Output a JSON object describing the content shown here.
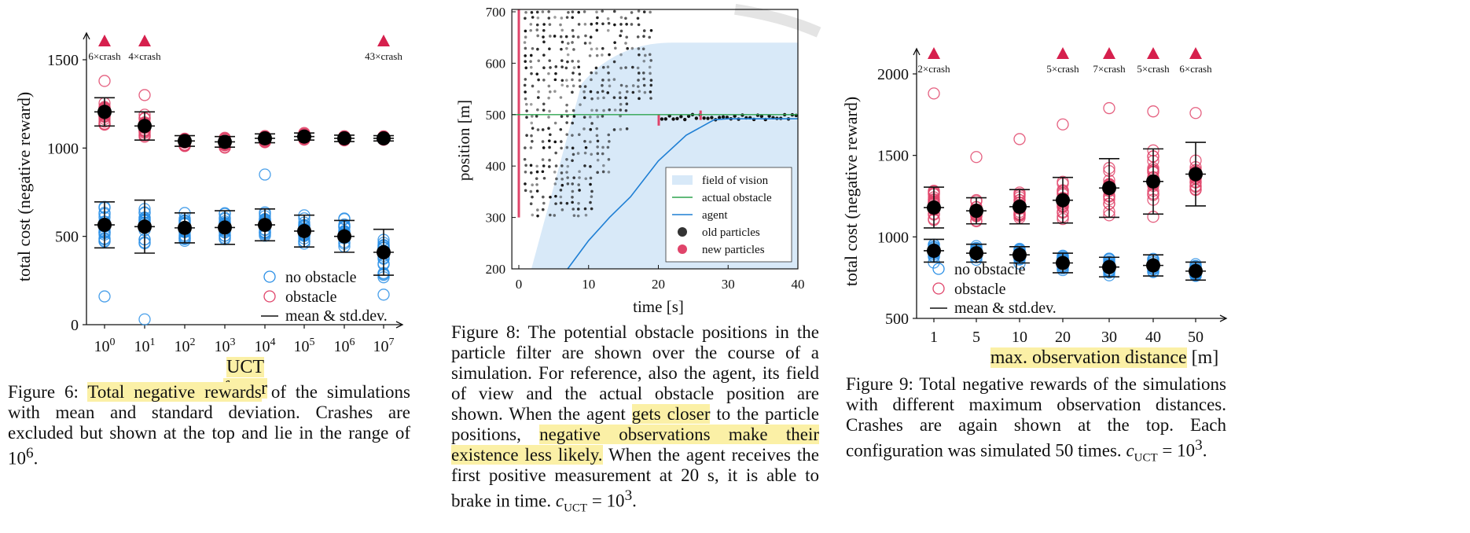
{
  "figure6": {
    "chart_data": {
      "type": "scatter",
      "ylabel": "total cost (negative reward)",
      "xlabel": "UCT factor",
      "yticks": [
        0,
        500,
        1000,
        1500
      ],
      "ylim": [
        0,
        1600
      ],
      "categories": [
        "10^0",
        "10^1",
        "10^2",
        "10^3",
        "10^4",
        "10^5",
        "10^6",
        "10^7"
      ],
      "crashes": [
        {
          "category": "10^0",
          "label": "6×crash"
        },
        {
          "category": "10^1",
          "label": "4×crash"
        },
        {
          "category": "10^7",
          "label": "43×crash"
        }
      ],
      "series": [
        {
          "name": "no obstacle",
          "color": "#2a8fe6",
          "mean": [
            565,
            555,
            548,
            550,
            565,
            530,
            500,
            410
          ],
          "std": [
            130,
            150,
            85,
            95,
            90,
            90,
            90,
            130
          ]
        },
        {
          "name": "obstacle",
          "color": "#e0446a",
          "mean": [
            1205,
            1125,
            1040,
            1035,
            1055,
            1065,
            1055,
            1055
          ],
          "std": [
            80,
            80,
            30,
            30,
            25,
            20,
            18,
            15
          ]
        }
      ],
      "legend": {
        "items": [
          "no obstacle",
          "obstacle",
          "mean & std.dev."
        ],
        "placement": "bottom-right"
      }
    },
    "caption": {
      "prefix": "Figure 6: ",
      "hl": "Total negative rewards",
      "rest": " of the simulations with mean and standard deviation. Crashes are excluded but shown at the top and lie in the range of 10",
      "sup": "6",
      "end": "."
    }
  },
  "figure8": {
    "chart_data": {
      "type": "scatter",
      "xlabel": "time [s]",
      "ylabel": "position [m]",
      "xticks": [
        0,
        10,
        20,
        30,
        40
      ],
      "yticks": [
        200,
        300,
        400,
        500,
        600,
        700
      ],
      "xlim": [
        -1,
        40
      ],
      "ylim": [
        200,
        710
      ],
      "obstacle_position": 500,
      "agent": [
        [
          7,
          200
        ],
        [
          10,
          255
        ],
        [
          13,
          300
        ],
        [
          16,
          340
        ],
        [
          20,
          410
        ],
        [
          24,
          460
        ],
        [
          28,
          490
        ],
        [
          30,
          492
        ],
        [
          40,
          492
        ]
      ],
      "legend": {
        "items": [
          "field of vision",
          "actual obstacle",
          "agent",
          "old particles",
          "new particles"
        ],
        "placement": "lower-right"
      }
    },
    "caption": {
      "p1": "Figure 8: The potential obstacle positions in the particle filter are shown over the course of a simulation. For reference, also the agent, its field of view and the actual obstacle position are shown. When the agent ",
      "hl1": "gets closer",
      "p2": " to the particle positions, ",
      "hl2": "negative observations make their existence less likely.",
      "p3": " When the agent receives the first positive measurement at 20 s, it is able to brake in time. ",
      "c_base": "c",
      "c_sub": "UCT",
      "c_eq": " = 10",
      "c_sup": "3",
      "c_end": "."
    }
  },
  "figure9": {
    "chart_data": {
      "type": "scatter",
      "ylabel": "total cost (negative reward)",
      "xlabel": "max. observation distance",
      "xlabel_unit": " [m]",
      "yticks": [
        500,
        1000,
        1500,
        2000
      ],
      "ylim": [
        300,
        2200
      ],
      "categories": [
        "1",
        "5",
        "10",
        "20",
        "30",
        "40",
        "50"
      ],
      "crashes": [
        {
          "category": "1",
          "label": "2×crash"
        },
        {
          "category": "20",
          "label": "5×crash"
        },
        {
          "category": "30",
          "label": "7×crash"
        },
        {
          "category": "40",
          "label": "5×crash"
        },
        {
          "category": "50",
          "label": "6×crash"
        }
      ],
      "series": [
        {
          "name": "no obstacle",
          "color": "#2a8fe6",
          "mean": [
            915,
            900,
            890,
            840,
            815,
            825,
            790
          ],
          "std": [
            70,
            55,
            50,
            60,
            60,
            65,
            55
          ]
        },
        {
          "name": "obstacle",
          "color": "#e0446a",
          "mean": [
            1180,
            1160,
            1185,
            1225,
            1300,
            1340,
            1385
          ],
          "std": [
            125,
            80,
            105,
            140,
            180,
            200,
            195
          ]
        }
      ],
      "legend": {
        "items": [
          "no obstacle",
          "obstacle",
          "mean & std.dev."
        ],
        "placement": "bottom-left"
      }
    },
    "caption": {
      "p1": "Figure 9: Total negative rewards of the simulations with different maximum observation distances. Crashes are again shown at the top. Each configuration was simulated 50 times. ",
      "c_base": "c",
      "c_sub": "UCT",
      "c_eq": " = 10",
      "c_sup": "3",
      "c_end": "."
    }
  }
}
